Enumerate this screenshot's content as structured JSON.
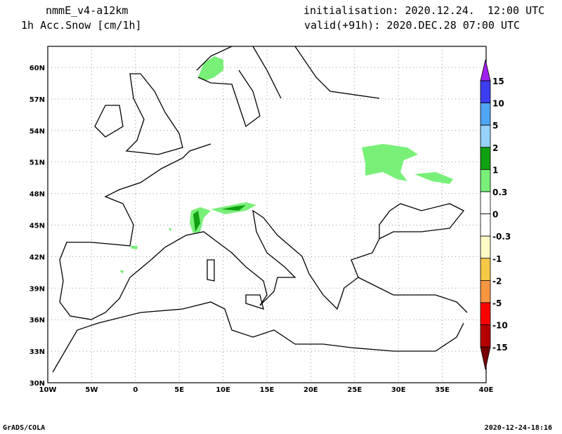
{
  "header": {
    "model": "nmmE_v4-a12km",
    "variable": "1h Acc.Snow [cm/1h]",
    "initialisation": "initialisation: 2020.12.24.  12:00 UTC",
    "valid": "valid(+91h): 2020.DEC.28 07:00 UTC"
  },
  "footer": {
    "left": "GrADS/COLA",
    "right": "2020-12-24-18:16"
  },
  "map": {
    "lon_range": [
      -10,
      40
    ],
    "lat_range": [
      30,
      62
    ],
    "lon_ticks": [
      {
        "v": -10,
        "label": "10W"
      },
      {
        "v": -5,
        "label": "5W"
      },
      {
        "v": 0,
        "label": "0"
      },
      {
        "v": 5,
        "label": "5E"
      },
      {
        "v": 10,
        "label": "10E"
      },
      {
        "v": 15,
        "label": "15E"
      },
      {
        "v": 20,
        "label": "20E"
      },
      {
        "v": 25,
        "label": "25E"
      },
      {
        "v": 30,
        "label": "30E"
      },
      {
        "v": 35,
        "label": "35E"
      },
      {
        "v": 40,
        "label": "40E"
      }
    ],
    "lat_ticks": [
      {
        "v": 30,
        "label": "30N"
      },
      {
        "v": 33,
        "label": "33N"
      },
      {
        "v": 36,
        "label": "36N"
      },
      {
        "v": 39,
        "label": "39N"
      },
      {
        "v": 42,
        "label": "42N"
      },
      {
        "v": 45,
        "label": "45N"
      },
      {
        "v": 48,
        "label": "48N"
      },
      {
        "v": 51,
        "label": "51N"
      },
      {
        "v": 54,
        "label": "54N"
      },
      {
        "v": 57,
        "label": "57N"
      },
      {
        "v": 60,
        "label": "60N"
      }
    ]
  },
  "colorbar": {
    "labels": [
      "15",
      "10",
      "5",
      "2",
      "1",
      "0.3",
      "0",
      "-0.3",
      "-1",
      "-2",
      "-5",
      "-10",
      "-15"
    ],
    "colors": [
      "#a020f0",
      "#3c3cf0",
      "#50a5f5",
      "#96d2fa",
      "#10a010",
      "#78f078",
      "#ffffff",
      "#ffffff",
      "#fffac8",
      "#f5c846",
      "#fa9641",
      "#fa0000",
      "#b40000",
      "#780000"
    ]
  }
}
